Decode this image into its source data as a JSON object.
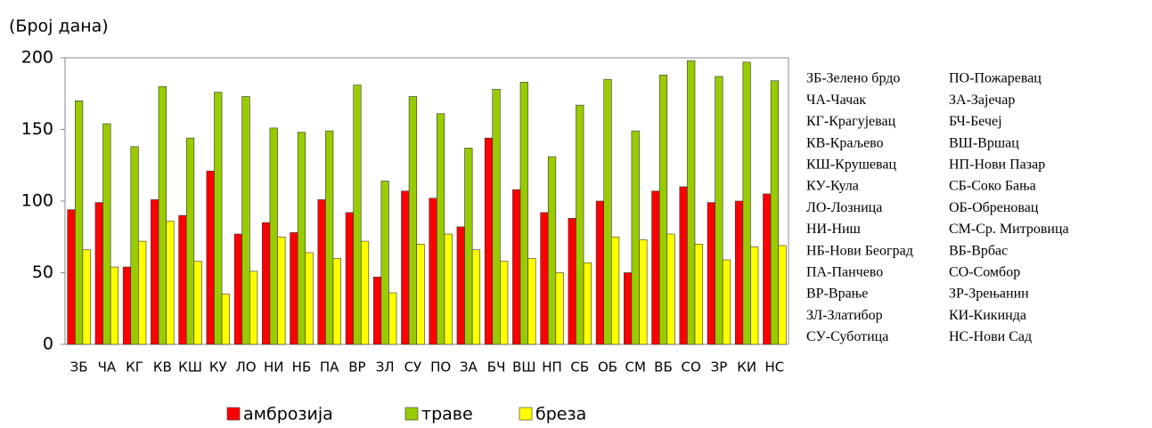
{
  "chart_data": {
    "type": "bar",
    "y_label": "(Број дана)",
    "categories": [
      "ЗБ",
      "ЧА",
      "КГ",
      "КВ",
      "КШ",
      "КУ",
      "ЛО",
      "НИ",
      "НБ",
      "ПА",
      "ВР",
      "ЗЛ",
      "СУ",
      "ПО",
      "ЗА",
      "БЧ",
      "ВШ",
      "НП",
      "СБ",
      "ОБ",
      "СМ",
      "ВБ",
      "СО",
      "ЗР",
      "КИ",
      "НС"
    ],
    "series": [
      {
        "name": "амброзија",
        "color": "#ff0000",
        "values": [
          94,
          99,
          54,
          101,
          90,
          121,
          77,
          85,
          78,
          101,
          92,
          47,
          107,
          102,
          82,
          144,
          108,
          92,
          88,
          100,
          50,
          107,
          110,
          99,
          100,
          105
        ]
      },
      {
        "name": "траве",
        "color": "#99cc00",
        "values": [
          170,
          154,
          138,
          180,
          144,
          176,
          173,
          151,
          148,
          149,
          181,
          114,
          173,
          161,
          137,
          178,
          183,
          131,
          167,
          185,
          149,
          188,
          198,
          187,
          197,
          184
        ]
      },
      {
        "name": "бреза",
        "color": "#ffff00",
        "values": [
          66,
          54,
          72,
          86,
          58,
          35,
          51,
          75,
          64,
          60,
          72,
          36,
          70,
          77,
          66,
          58,
          60,
          50,
          57,
          75,
          73,
          77,
          70,
          59,
          68,
          69
        ]
      }
    ],
    "ylim": [
      0,
      200
    ],
    "yticks": [
      0,
      50,
      100,
      150,
      200
    ],
    "grid": false,
    "key": [
      "ЗБ-Зелено брдо",
      "ЧА-Чачак",
      "КГ-Крагујевац",
      "КВ-Краљево",
      "КШ-Крушевац",
      "КУ-Кула",
      "ЛО-Лозница",
      "НИ-Ниш",
      "НБ-Нови Београд",
      "ПА-Панчево",
      "ВР-Врање",
      "ЗЛ-Златибор",
      "СУ-Суботица",
      "ПО-Пожаревац",
      "ЗА-Зајечар",
      "БЧ-Бечеј",
      "ВШ-Вршац",
      "НП-Нови Пазар",
      "СБ-Соко Бања",
      "ОБ-Обреновац",
      "СМ-Ср. Митровица",
      "ВБ-Врбас",
      "СО-Сомбор",
      "ЗР-Зрењанин",
      "КИ-Кикинда",
      "НС-Нови Сад"
    ]
  }
}
